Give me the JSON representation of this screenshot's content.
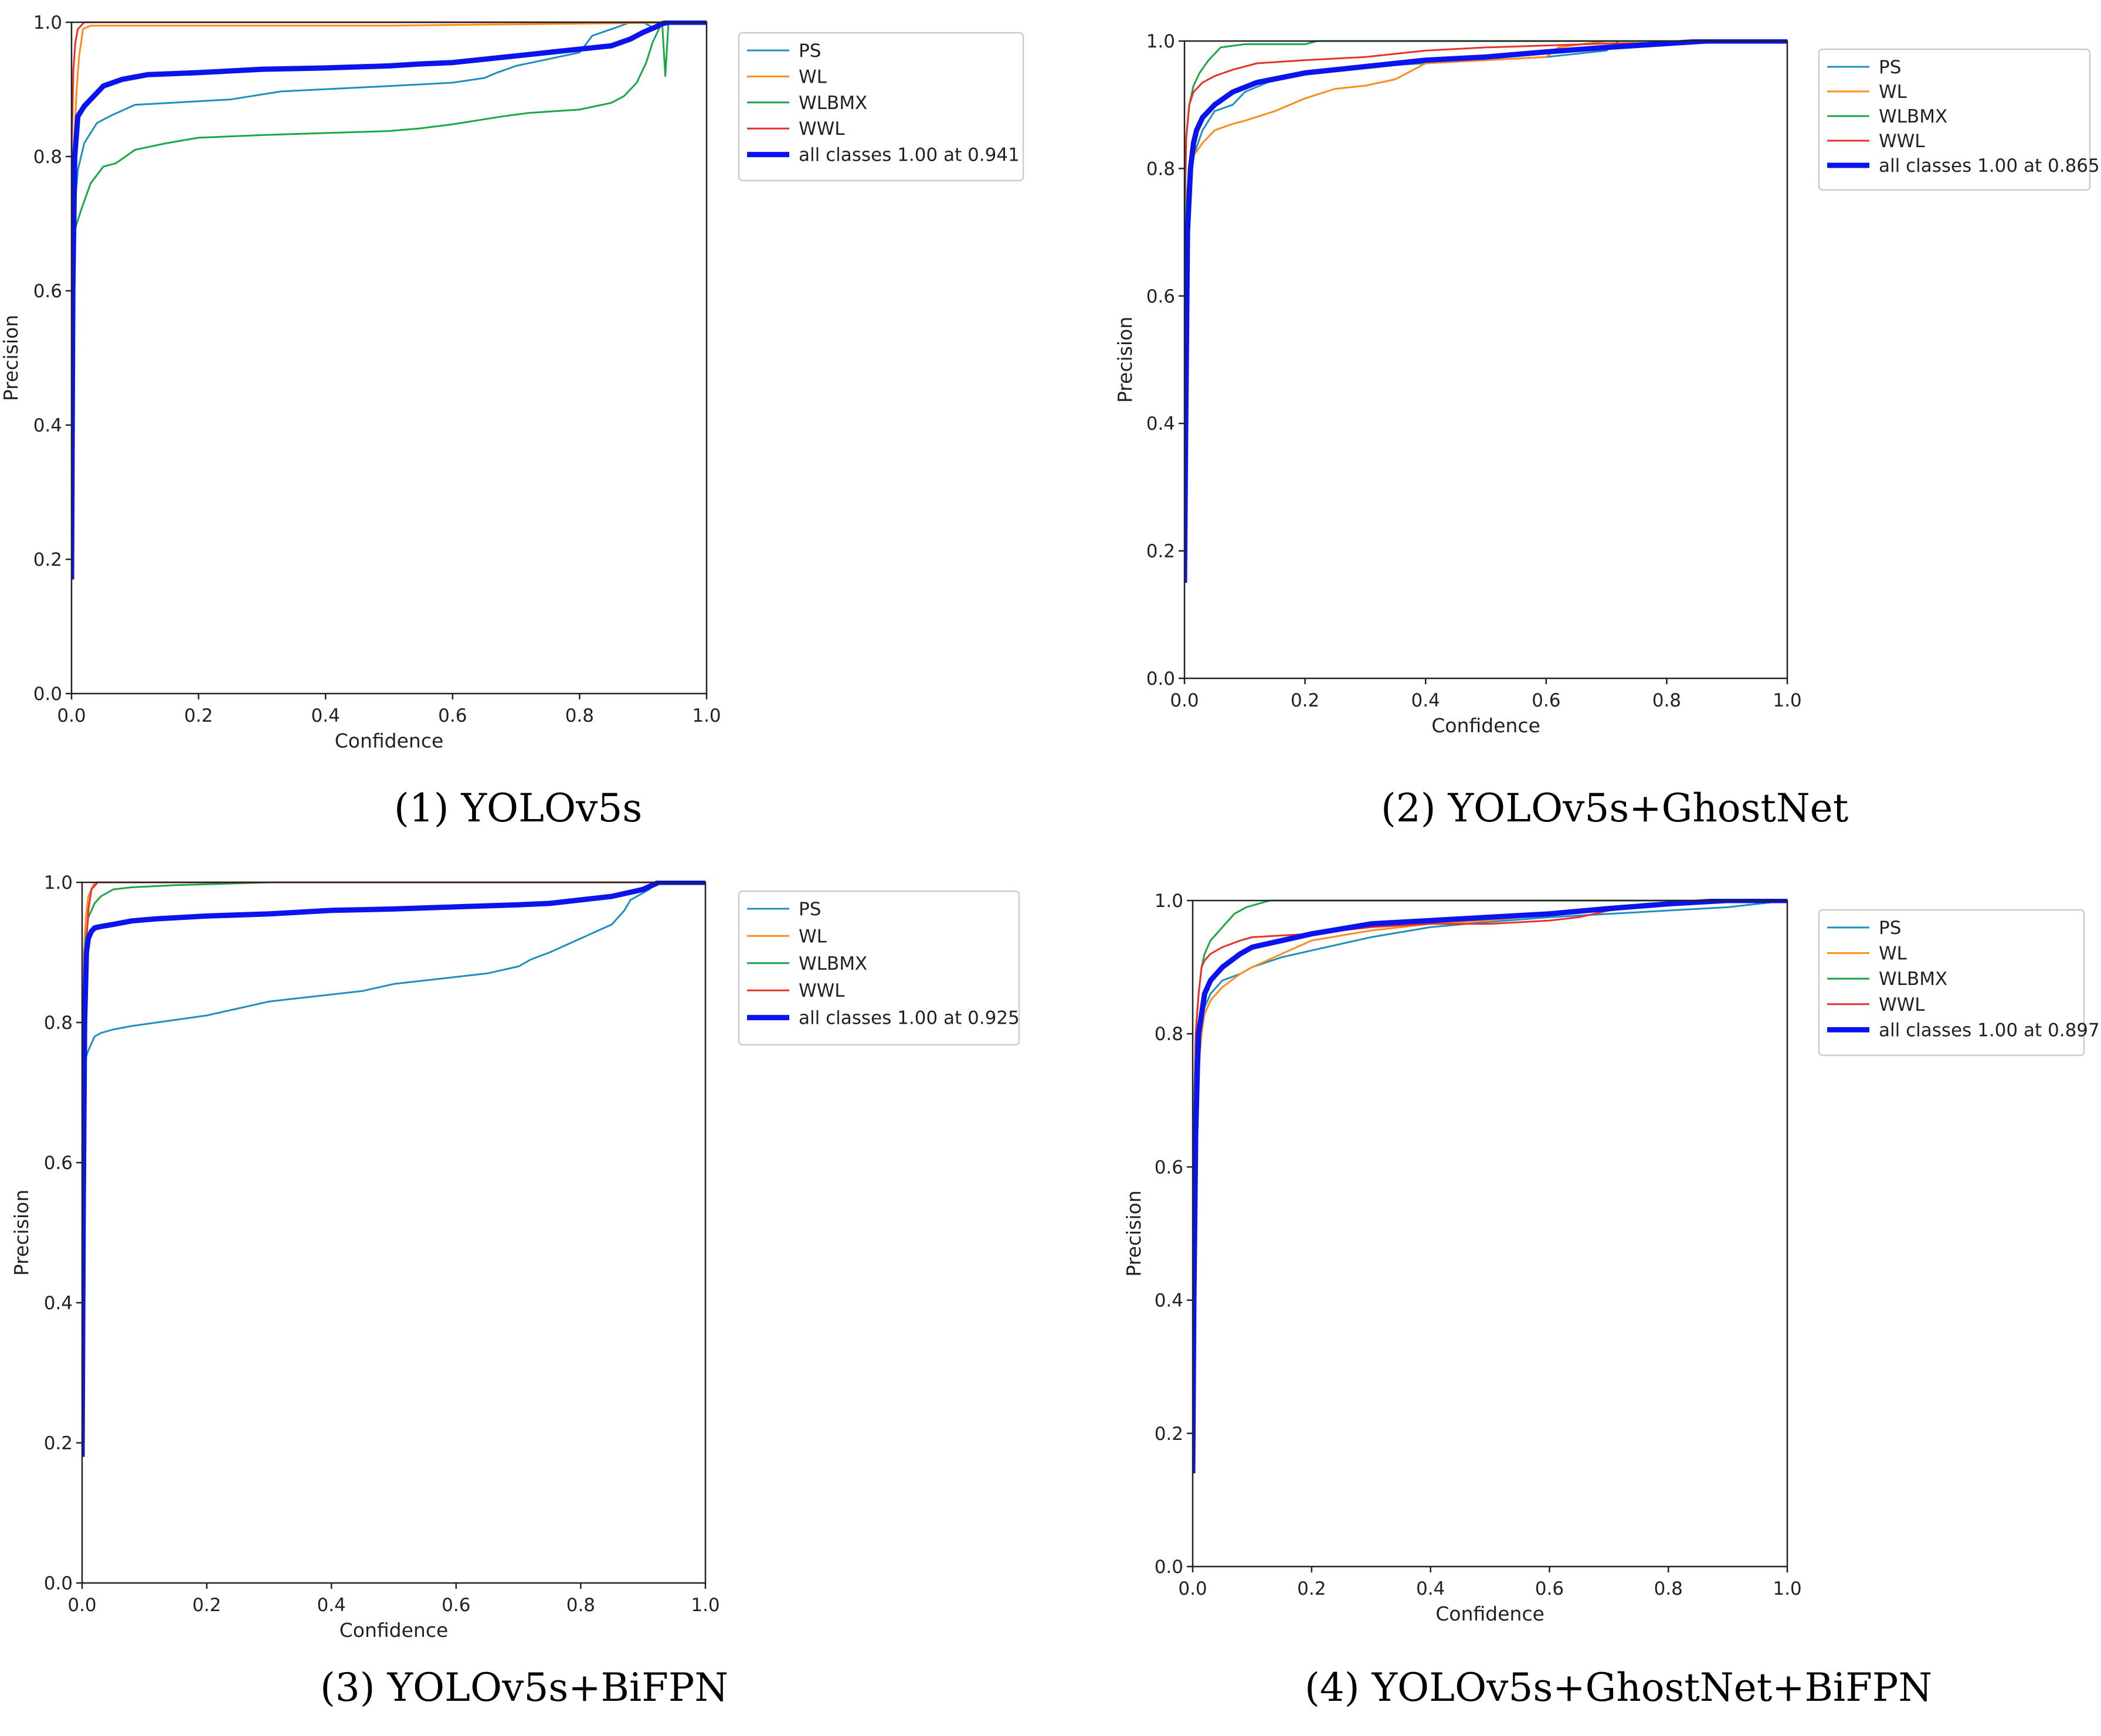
{
  "figure": {
    "captions": [
      "(1) YOLOv5s",
      "(2) YOLOv5s+GhostNet",
      "(3) YOLOv5s+BiFPN",
      "(4) YOLOv5s+GhostNet+BiFPN"
    ]
  },
  "colors": {
    "PS": "#1f8fbf",
    "WL": "#ff8c1a",
    "WLBMX": "#18a844",
    "WWL": "#e8312a",
    "all": "#0a14ee"
  },
  "chart_data": [
    {
      "type": "line",
      "title": "(1) YOLOv5s",
      "xlabel": "Confidence",
      "ylabel": "Precision",
      "xlim": [
        0,
        1
      ],
      "ylim": [
        0,
        1
      ],
      "xticks": [
        "0.0",
        "0.2",
        "0.4",
        "0.6",
        "0.8",
        "1.0"
      ],
      "yticks": [
        "0.0",
        "0.2",
        "0.4",
        "0.6",
        "0.8",
        "1.0"
      ],
      "legend_position": "outside-right-top",
      "series": [
        {
          "name": "PS",
          "color": "#1f8fbf",
          "x": [
            0.0,
            0.003,
            0.01,
            0.02,
            0.04,
            0.06,
            0.1,
            0.25,
            0.33,
            0.5,
            0.6,
            0.65,
            0.67,
            0.7,
            0.8,
            0.82,
            0.86,
            0.88,
            0.9,
            0.92,
            0.93,
            0.94,
            1.0
          ],
          "y": [
            0.55,
            0.7,
            0.78,
            0.82,
            0.85,
            0.86,
            0.877,
            0.885,
            0.897,
            0.905,
            0.91,
            0.917,
            0.925,
            0.935,
            0.955,
            0.98,
            0.993,
            1.0,
            1.0,
            0.99,
            1.0,
            1.0,
            1.0
          ]
        },
        {
          "name": "WL",
          "color": "#ff8c1a",
          "x": [
            0.0,
            0.003,
            0.008,
            0.012,
            0.018,
            0.03,
            0.5,
            1.0
          ],
          "y": [
            0.55,
            0.8,
            0.9,
            0.95,
            0.99,
            0.995,
            0.995,
            1.0
          ]
        },
        {
          "name": "WLBMX",
          "color": "#18a844",
          "x": [
            0.0,
            0.003,
            0.008,
            0.015,
            0.03,
            0.05,
            0.07,
            0.1,
            0.15,
            0.2,
            0.3,
            0.4,
            0.5,
            0.55,
            0.6,
            0.68,
            0.72,
            0.8,
            0.85,
            0.87,
            0.89,
            0.905,
            0.915,
            0.925,
            0.93,
            0.935,
            0.94,
            1.0
          ],
          "y": [
            0.6,
            0.68,
            0.7,
            0.72,
            0.76,
            0.785,
            0.79,
            0.81,
            0.82,
            0.828,
            0.832,
            0.835,
            0.838,
            0.842,
            0.848,
            0.86,
            0.865,
            0.87,
            0.88,
            0.89,
            0.91,
            0.94,
            0.97,
            0.99,
            1.0,
            0.92,
            1.0,
            1.0
          ]
        },
        {
          "name": "WWL",
          "color": "#e8312a",
          "x": [
            0.0,
            0.003,
            0.006,
            0.01,
            0.02,
            1.0
          ],
          "y": [
            0.8,
            0.93,
            0.97,
            0.99,
            1.0,
            1.0
          ]
        },
        {
          "name": "all classes 1.00 at 0.941",
          "color": "#0a14ee",
          "x": [
            0.0,
            0.002,
            0.005,
            0.01,
            0.02,
            0.03,
            0.05,
            0.08,
            0.12,
            0.2,
            0.3,
            0.4,
            0.5,
            0.55,
            0.6,
            0.65,
            0.7,
            0.75,
            0.8,
            0.85,
            0.88,
            0.9,
            0.92,
            0.93,
            0.941,
            1.0
          ],
          "y": [
            0.17,
            0.6,
            0.8,
            0.86,
            0.875,
            0.885,
            0.905,
            0.915,
            0.922,
            0.925,
            0.93,
            0.932,
            0.935,
            0.938,
            0.94,
            0.945,
            0.95,
            0.955,
            0.96,
            0.965,
            0.975,
            0.985,
            0.993,
            0.998,
            1.0,
            1.0
          ]
        }
      ]
    },
    {
      "type": "line",
      "title": "(2) YOLOv5s+GhostNet",
      "xlabel": "Confidence",
      "ylabel": "Precision",
      "xlim": [
        0,
        1
      ],
      "ylim": [
        0,
        1
      ],
      "xticks": [
        "0.0",
        "0.2",
        "0.4",
        "0.6",
        "0.8",
        "1.0"
      ],
      "yticks": [
        "0.0",
        "0.2",
        "0.4",
        "0.6",
        "0.8",
        "1.0"
      ],
      "legend_position": "outside-right-top",
      "series": [
        {
          "name": "PS",
          "color": "#1f8fbf",
          "x": [
            0.0,
            0.003,
            0.008,
            0.015,
            0.03,
            0.05,
            0.08,
            0.1,
            0.15,
            0.2,
            0.3,
            0.4,
            0.5,
            0.6,
            0.65,
            0.7,
            0.72,
            1.0
          ],
          "y": [
            0.45,
            0.7,
            0.78,
            0.82,
            0.86,
            0.89,
            0.9,
            0.92,
            0.94,
            0.95,
            0.96,
            0.965,
            0.97,
            0.975,
            0.98,
            0.985,
            1.0,
            1.0
          ]
        },
        {
          "name": "WL",
          "color": "#ff8c1a",
          "x": [
            0.0,
            0.003,
            0.008,
            0.015,
            0.03,
            0.05,
            0.08,
            0.1,
            0.15,
            0.2,
            0.25,
            0.3,
            0.35,
            0.38,
            0.4,
            0.5,
            0.6,
            0.62,
            0.7,
            1.0
          ],
          "y": [
            0.45,
            0.75,
            0.8,
            0.82,
            0.84,
            0.86,
            0.87,
            0.875,
            0.89,
            0.91,
            0.925,
            0.93,
            0.94,
            0.955,
            0.965,
            0.97,
            0.975,
            0.99,
            1.0,
            1.0
          ]
        },
        {
          "name": "WLBMX",
          "color": "#18a844",
          "x": [
            0.0,
            0.003,
            0.008,
            0.015,
            0.025,
            0.04,
            0.06,
            0.1,
            0.2,
            0.22,
            1.0
          ],
          "y": [
            0.7,
            0.85,
            0.9,
            0.93,
            0.95,
            0.97,
            0.99,
            0.995,
            0.995,
            1.0,
            1.0
          ]
        },
        {
          "name": "WWL",
          "color": "#e8312a",
          "x": [
            0.0,
            0.003,
            0.008,
            0.015,
            0.03,
            0.05,
            0.08,
            0.12,
            0.2,
            0.3,
            0.35,
            0.4,
            0.5,
            0.6,
            0.7,
            1.0
          ],
          "y": [
            0.75,
            0.85,
            0.9,
            0.92,
            0.935,
            0.945,
            0.955,
            0.965,
            0.97,
            0.975,
            0.98,
            0.985,
            0.99,
            0.993,
            0.996,
            1.0
          ]
        },
        {
          "name": "all classes 1.00 at 0.865",
          "color": "#0a14ee",
          "x": [
            0.0,
            0.002,
            0.005,
            0.01,
            0.015,
            0.02,
            0.03,
            0.05,
            0.08,
            0.12,
            0.2,
            0.3,
            0.4,
            0.5,
            0.6,
            0.7,
            0.8,
            0.865,
            1.0
          ],
          "y": [
            0.15,
            0.4,
            0.7,
            0.8,
            0.84,
            0.86,
            0.88,
            0.9,
            0.92,
            0.935,
            0.95,
            0.96,
            0.97,
            0.975,
            0.983,
            0.99,
            0.996,
            1.0,
            1.0
          ]
        }
      ]
    },
    {
      "type": "line",
      "title": "(3) YOLOv5s+BiFPN",
      "xlabel": "Confidence",
      "ylabel": "Precision",
      "xlim": [
        0,
        1
      ],
      "ylim": [
        0,
        1
      ],
      "xticks": [
        "0.0",
        "0.2",
        "0.4",
        "0.6",
        "0.8",
        "1.0"
      ],
      "yticks": [
        "0.0",
        "0.2",
        "0.4",
        "0.6",
        "0.8",
        "1.0"
      ],
      "legend_position": "outside-right-top",
      "series": [
        {
          "name": "PS",
          "color": "#1f8fbf",
          "x": [
            0.0,
            0.003,
            0.006,
            0.01,
            0.02,
            0.03,
            0.05,
            0.08,
            0.12,
            0.2,
            0.25,
            0.3,
            0.4,
            0.45,
            0.5,
            0.6,
            0.65,
            0.7,
            0.72,
            0.75,
            0.8,
            0.85,
            0.87,
            0.88,
            0.9,
            0.91,
            0.92,
            1.0
          ],
          "y": [
            0.5,
            0.7,
            0.75,
            0.76,
            0.78,
            0.785,
            0.79,
            0.795,
            0.8,
            0.81,
            0.82,
            0.83,
            0.84,
            0.845,
            0.855,
            0.865,
            0.87,
            0.88,
            0.89,
            0.9,
            0.92,
            0.94,
            0.96,
            0.975,
            0.985,
            0.99,
            1.0,
            1.0
          ]
        },
        {
          "name": "WL",
          "color": "#ff8c1a",
          "x": [
            0.0,
            0.003,
            0.006,
            0.01,
            0.015,
            0.02,
            1.0
          ],
          "y": [
            0.6,
            0.9,
            0.95,
            0.98,
            0.99,
            1.0,
            1.0
          ]
        },
        {
          "name": "WLBMX",
          "color": "#18a844",
          "x": [
            0.0,
            0.003,
            0.006,
            0.01,
            0.02,
            0.03,
            0.05,
            0.08,
            0.15,
            0.3,
            1.0
          ],
          "y": [
            0.6,
            0.85,
            0.92,
            0.95,
            0.97,
            0.98,
            0.99,
            0.993,
            0.996,
            1.0,
            1.0
          ]
        },
        {
          "name": "WWL",
          "color": "#e8312a",
          "x": [
            0.0,
            0.003,
            0.006,
            0.01,
            0.015,
            0.025,
            1.0
          ],
          "y": [
            0.18,
            0.6,
            0.9,
            0.96,
            0.99,
            1.0,
            1.0
          ]
        },
        {
          "name": "all classes 1.00 at 0.925",
          "color": "#0a14ee",
          "x": [
            0.0,
            0.002,
            0.004,
            0.007,
            0.01,
            0.015,
            0.02,
            0.03,
            0.05,
            0.08,
            0.12,
            0.2,
            0.3,
            0.4,
            0.5,
            0.6,
            0.7,
            0.75,
            0.8,
            0.85,
            0.9,
            0.925,
            1.0
          ],
          "y": [
            0.18,
            0.55,
            0.8,
            0.9,
            0.92,
            0.93,
            0.935,
            0.937,
            0.94,
            0.945,
            0.948,
            0.952,
            0.955,
            0.96,
            0.962,
            0.965,
            0.968,
            0.97,
            0.975,
            0.98,
            0.99,
            1.0,
            1.0
          ]
        }
      ]
    },
    {
      "type": "line",
      "title": "(4) YOLOv5s+GhostNet+BiFPN",
      "xlabel": "Confidence",
      "ylabel": "Precision",
      "xlim": [
        0,
        1
      ],
      "ylim": [
        0,
        1
      ],
      "xticks": [
        "0.0",
        "0.2",
        "0.4",
        "0.6",
        "0.8",
        "1.0"
      ],
      "yticks": [
        "0.0",
        "0.2",
        "0.4",
        "0.6",
        "0.8",
        "1.0"
      ],
      "legend_position": "outside-right-top",
      "series": [
        {
          "name": "PS",
          "color": "#1f8fbf",
          "x": [
            0.0,
            0.005,
            0.01,
            0.015,
            0.02,
            0.03,
            0.05,
            0.08,
            0.1,
            0.15,
            0.2,
            0.25,
            0.3,
            0.4,
            0.5,
            0.6,
            0.7,
            0.8,
            0.9,
            1.0
          ],
          "y": [
            0.4,
            0.7,
            0.78,
            0.82,
            0.84,
            0.86,
            0.88,
            0.89,
            0.9,
            0.915,
            0.925,
            0.935,
            0.945,
            0.96,
            0.968,
            0.975,
            0.98,
            0.985,
            0.99,
            1.0
          ]
        },
        {
          "name": "WL",
          "color": "#ff8c1a",
          "x": [
            0.0,
            0.005,
            0.01,
            0.015,
            0.02,
            0.03,
            0.05,
            0.08,
            0.1,
            0.15,
            0.2,
            0.3,
            0.4,
            0.5,
            0.6,
            0.7,
            0.8,
            1.0
          ],
          "y": [
            0.45,
            0.7,
            0.75,
            0.8,
            0.83,
            0.85,
            0.87,
            0.89,
            0.9,
            0.92,
            0.94,
            0.955,
            0.965,
            0.97,
            0.98,
            0.985,
            0.995,
            1.0
          ]
        },
        {
          "name": "WLBMX",
          "color": "#18a844",
          "x": [
            0.0,
            0.005,
            0.01,
            0.015,
            0.02,
            0.03,
            0.05,
            0.07,
            0.09,
            0.11,
            0.13,
            1.0
          ],
          "y": [
            0.6,
            0.8,
            0.86,
            0.9,
            0.92,
            0.94,
            0.96,
            0.98,
            0.99,
            0.995,
            1.0,
            1.0
          ]
        },
        {
          "name": "WWL",
          "color": "#e8312a",
          "x": [
            0.0,
            0.005,
            0.01,
            0.015,
            0.02,
            0.03,
            0.05,
            0.08,
            0.1,
            0.2,
            0.3,
            0.4,
            0.5,
            0.6,
            0.65,
            0.7,
            0.75,
            0.8,
            1.0
          ],
          "y": [
            0.5,
            0.8,
            0.86,
            0.9,
            0.91,
            0.92,
            0.93,
            0.94,
            0.945,
            0.95,
            0.96,
            0.965,
            0.965,
            0.97,
            0.975,
            0.985,
            0.99,
            0.995,
            1.0
          ]
        },
        {
          "name": "all classes 1.00 at 0.897",
          "color": "#0a14ee",
          "x": [
            0.0,
            0.002,
            0.005,
            0.008,
            0.01,
            0.015,
            0.02,
            0.03,
            0.05,
            0.08,
            0.1,
            0.15,
            0.2,
            0.3,
            0.4,
            0.5,
            0.6,
            0.7,
            0.8,
            0.897,
            1.0
          ],
          "y": [
            0.14,
            0.4,
            0.65,
            0.75,
            0.8,
            0.83,
            0.86,
            0.88,
            0.9,
            0.92,
            0.93,
            0.94,
            0.95,
            0.965,
            0.97,
            0.975,
            0.98,
            0.988,
            0.995,
            1.0,
            1.0
          ]
        }
      ]
    }
  ]
}
